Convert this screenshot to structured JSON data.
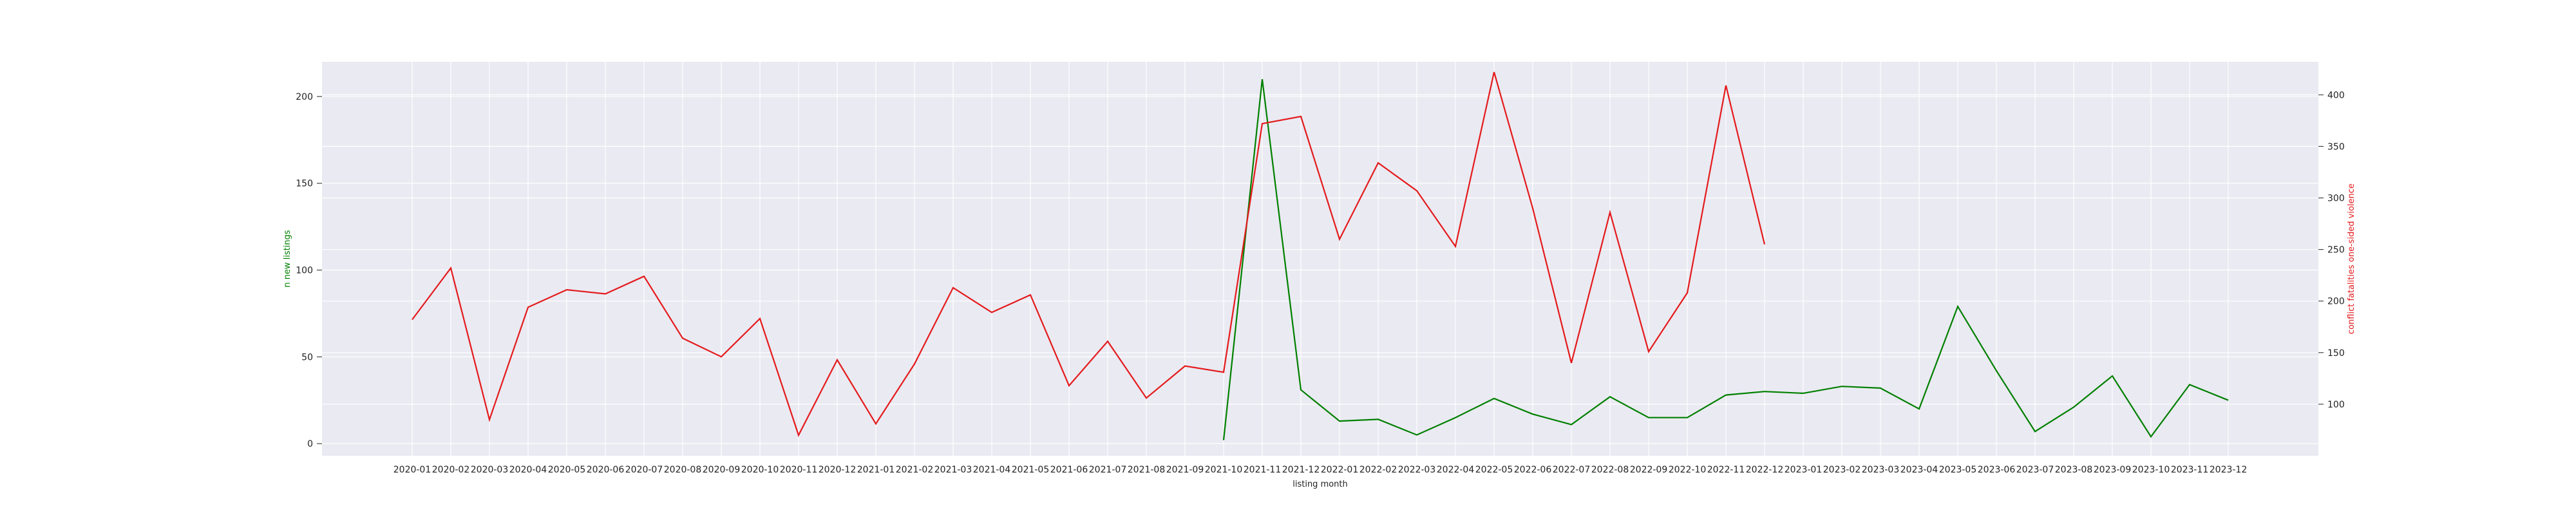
{
  "chart_data": {
    "type": "line",
    "title": "",
    "xlabel": "listing month",
    "ylabel_left": "n new listings",
    "ylabel_right": "conflict fatalities one-sided violence",
    "grid": true,
    "legend": "none",
    "x": [
      "2020-01",
      "2020-02",
      "2020-03",
      "2020-04",
      "2020-05",
      "2020-06",
      "2020-07",
      "2020-08",
      "2020-09",
      "2020-10",
      "2020-11",
      "2020-12",
      "2021-01",
      "2021-02",
      "2021-03",
      "2021-04",
      "2021-05",
      "2021-06",
      "2021-07",
      "2021-08",
      "2021-09",
      "2021-10",
      "2021-11",
      "2021-12",
      "2022-01",
      "2022-02",
      "2022-03",
      "2022-04",
      "2022-05",
      "2022-06",
      "2022-07",
      "2022-08",
      "2022-09",
      "2022-10",
      "2022-11",
      "2022-12",
      "2023-01",
      "2023-02",
      "2023-03",
      "2023-04",
      "2023-05",
      "2023-06",
      "2023-07",
      "2023-08",
      "2023-09",
      "2023-10",
      "2023-11",
      "2023-12"
    ],
    "y_left_ticks": [
      0,
      50,
      100,
      150,
      200
    ],
    "y_right_ticks": [
      100,
      150,
      200,
      250,
      300,
      350,
      400
    ],
    "ylim_left": [
      -7,
      220
    ],
    "ylim_right": [
      50,
      432
    ],
    "series": [
      {
        "axis": "left",
        "color": "#008000",
        "values": [
          null,
          null,
          null,
          null,
          null,
          null,
          null,
          null,
          null,
          null,
          null,
          null,
          null,
          null,
          null,
          null,
          null,
          null,
          null,
          null,
          null,
          2,
          210,
          31,
          13,
          14,
          5,
          15,
          26,
          17,
          11,
          27,
          15,
          15,
          28,
          30,
          29,
          33,
          32,
          20,
          79,
          42,
          7,
          21,
          39,
          4,
          34,
          25
        ]
      },
      {
        "axis": "right",
        "color": "#e41a1c",
        "values": [
          182,
          232,
          85,
          194,
          211,
          207,
          224,
          164,
          146,
          183,
          70,
          143,
          81,
          139,
          213,
          189,
          206,
          118,
          161,
          106,
          137,
          131,
          372,
          379,
          260,
          334,
          307,
          253,
          422,
          290,
          140,
          286,
          151,
          208,
          409,
          255,
          null,
          null,
          null,
          null,
          null,
          null,
          null,
          null,
          null,
          null,
          null,
          null
        ]
      }
    ]
  }
}
